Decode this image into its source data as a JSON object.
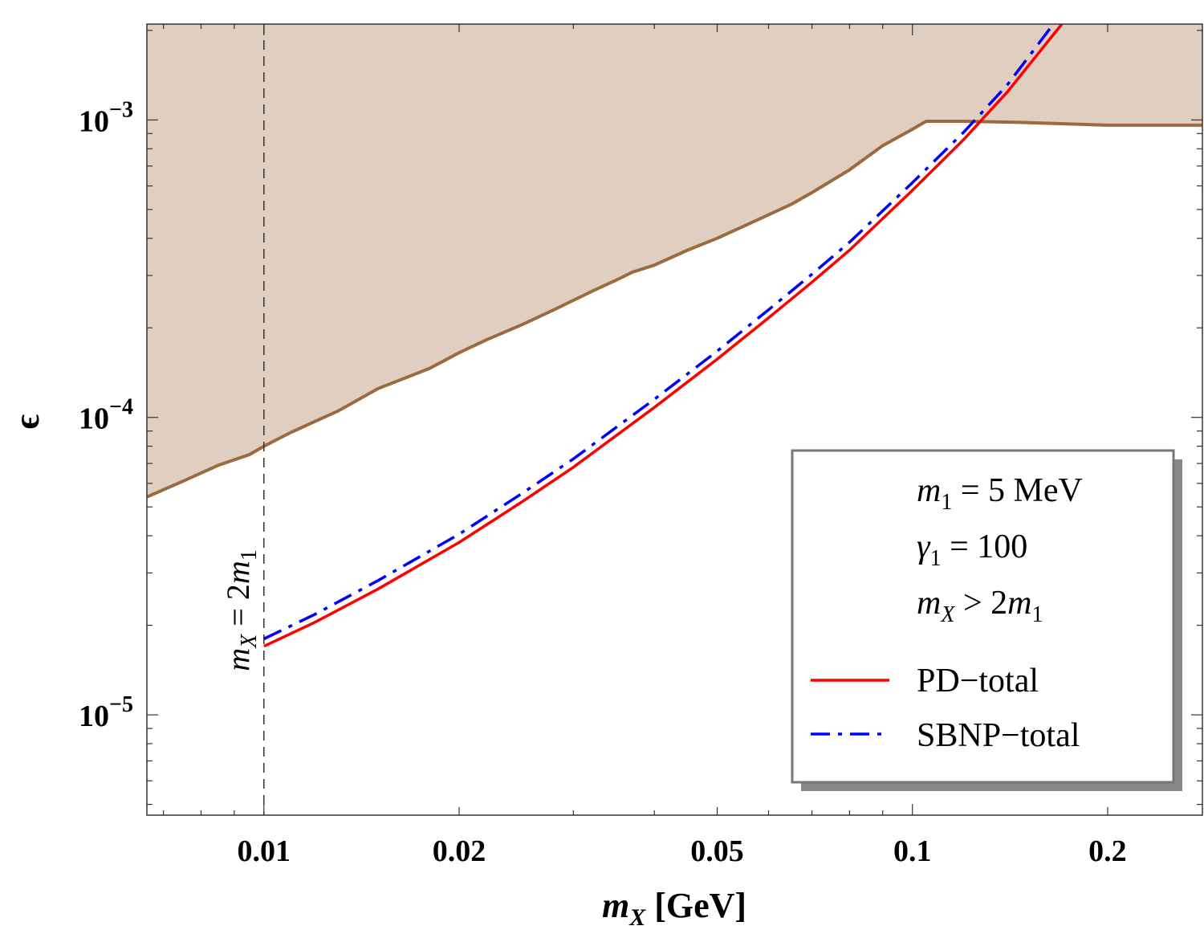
{
  "chart_data": {
    "type": "line",
    "title": "",
    "xscale": "log",
    "yscale": "log",
    "xlim": [
      0.0066,
      0.28
    ],
    "ylim": [
      4.6e-06,
      0.0021
    ],
    "xlabel": {
      "italic": "m",
      "sub": "X",
      "rest": " [GeV]"
    },
    "ylabel": "ϵ",
    "xticks": [
      {
        "value": 0.01,
        "label": "0.01"
      },
      {
        "value": 0.02,
        "label": "0.02"
      },
      {
        "value": 0.05,
        "label": "0.05"
      },
      {
        "value": 0.1,
        "label": "0.1"
      },
      {
        "value": 0.2,
        "label": "0.2"
      }
    ],
    "yticks": [
      {
        "value": 1e-05,
        "base": "10",
        "exp": "−5"
      },
      {
        "value": 0.0001,
        "base": "10",
        "exp": "−4"
      },
      {
        "value": 0.001,
        "base": "10",
        "exp": "−3"
      }
    ],
    "excluded_region": {
      "name": "excluded",
      "fill": "#e0cfc0",
      "edge": "#9b6b3f",
      "x": [
        0.0066,
        0.0075,
        0.0085,
        0.0095,
        0.01,
        0.011,
        0.012,
        0.013,
        0.015,
        0.018,
        0.02,
        0.022,
        0.025,
        0.028,
        0.032,
        0.035,
        0.037,
        0.04,
        0.045,
        0.05,
        0.055,
        0.06,
        0.065,
        0.07,
        0.08,
        0.09,
        0.1,
        0.105,
        0.12,
        0.15,
        0.2,
        0.28
      ],
      "y": [
        5.4e-05,
        6.1e-05,
        6.9e-05,
        7.5e-05,
        8e-05,
        8.9e-05,
        9.7e-05,
        0.000105,
        0.000125,
        0.000146,
        0.000165,
        0.000182,
        0.000205,
        0.00023,
        0.000265,
        0.00029,
        0.000308,
        0.000325,
        0.000365,
        0.0004,
        0.00044,
        0.00048,
        0.00052,
        0.00057,
        0.00068,
        0.00082,
        0.00093,
        0.00099,
        0.00099,
        0.00098,
        0.00096,
        0.00096
      ]
    },
    "series": [
      {
        "name": "PD−total",
        "color": "#ff0000",
        "dash": "solid",
        "x": [
          0.01,
          0.012,
          0.015,
          0.02,
          0.025,
          0.03,
          0.04,
          0.05,
          0.06,
          0.07,
          0.08,
          0.1,
          0.12,
          0.14,
          0.17
        ],
        "y": [
          1.7e-05,
          2.05e-05,
          2.65e-05,
          3.8e-05,
          5.2e-05,
          6.8e-05,
          0.000108,
          0.000157,
          0.000216,
          0.000285,
          0.000365,
          0.00058,
          0.00086,
          0.00124,
          0.0021
        ]
      },
      {
        "name": "SBNP−total",
        "color": "#0000ff",
        "dash": "dashdot",
        "x": [
          0.01,
          0.012,
          0.015,
          0.02,
          0.025,
          0.03,
          0.04,
          0.05,
          0.06,
          0.07,
          0.08,
          0.1,
          0.12,
          0.14,
          0.165
        ],
        "y": [
          1.8e-05,
          2.18e-05,
          2.83e-05,
          4.05e-05,
          5.55e-05,
          7.25e-05,
          0.000115,
          0.000167,
          0.00023,
          0.000303,
          0.000388,
          0.000615,
          0.00091,
          0.00131,
          0.0021
        ]
      }
    ],
    "vertical_line": {
      "x": 0.01,
      "style": "dashed",
      "label": {
        "lhs": "m",
        "lhs_sub": "X",
        "eq": " = 2",
        "rhs": "m",
        "rhs_sub": "1"
      }
    },
    "legend": {
      "position": "bottom-right",
      "params": [
        {
          "sym": "m",
          "sub": "1",
          "rest": " = 5 MeV"
        },
        {
          "sym": "γ",
          "sub": "1",
          "rest": " = 100"
        },
        {
          "sym": "m",
          "sub": "X",
          "rest": " > 2",
          "sym2": "m",
          "sub2": "1"
        }
      ]
    }
  }
}
